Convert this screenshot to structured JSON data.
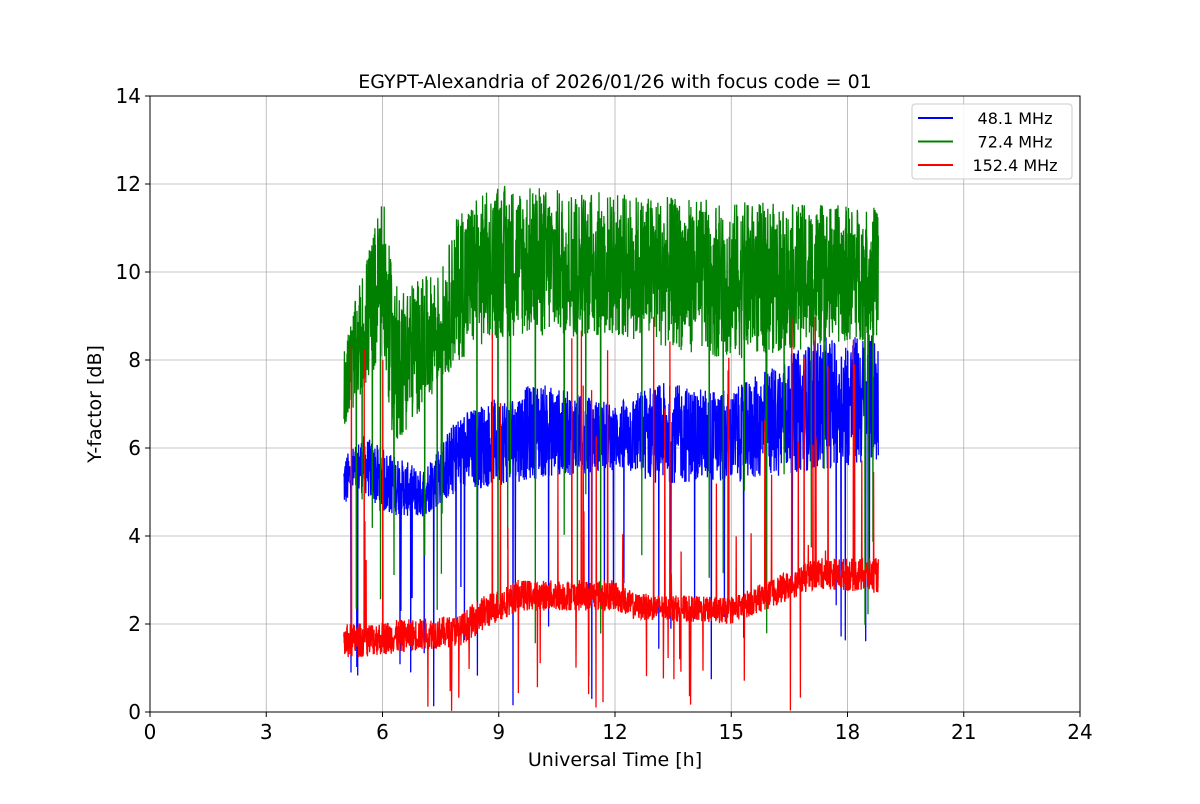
{
  "chart_data": {
    "type": "line",
    "title": "EGYPT-Alexandria of 2026/01/26 with focus code = 01",
    "xlabel": "Universal Time [h]",
    "ylabel": "Y-factor [dB]",
    "xlim": [
      0,
      24
    ],
    "ylim": [
      0,
      14
    ],
    "xticks": [
      0,
      3,
      6,
      9,
      12,
      15,
      18,
      21,
      24
    ],
    "yticks": [
      0,
      2,
      4,
      6,
      8,
      10,
      12,
      14
    ],
    "grid": true,
    "legend_position": "top-right",
    "series": [
      {
        "name": "48.1 MHz",
        "color": "#0000ff",
        "envelope": [
          [
            5.0,
            4.6,
            5.8
          ],
          [
            5.5,
            5.0,
            6.3
          ],
          [
            6.0,
            4.5,
            6.0
          ],
          [
            7.0,
            4.4,
            5.5
          ],
          [
            8.0,
            5.0,
            6.8
          ],
          [
            10.0,
            5.3,
            7.5
          ],
          [
            12.0,
            5.5,
            7.0
          ],
          [
            13.0,
            5.2,
            7.5
          ],
          [
            15.0,
            5.2,
            7.3
          ],
          [
            17.2,
            5.5,
            8.5
          ],
          [
            18.8,
            5.6,
            8.6
          ]
        ],
        "drop_rate": 0.012,
        "drop_min": 0.1,
        "spike_rate": 0.0,
        "spike_max": 8.5
      },
      {
        "name": "72.4 MHz",
        "color": "#008000",
        "envelope": [
          [
            5.0,
            6.5,
            8.3
          ],
          [
            6.0,
            8.0,
            11.8
          ],
          [
            6.3,
            6.0,
            9.7
          ],
          [
            7.5,
            7.5,
            10.0
          ],
          [
            8.0,
            8.0,
            11.5
          ],
          [
            9.0,
            8.5,
            12.0
          ],
          [
            12.0,
            8.5,
            11.8
          ],
          [
            15.0,
            8.0,
            11.6
          ],
          [
            18.8,
            8.5,
            11.5
          ]
        ],
        "drop_rate": 0.012,
        "drop_min": 1.5,
        "spike_rate": 0.0,
        "spike_max": 12
      },
      {
        "name": "152.4 MHz",
        "color": "#ff0000",
        "envelope": [
          [
            5.0,
            1.2,
            2.0
          ],
          [
            8.0,
            1.5,
            2.2
          ],
          [
            8.5,
            1.8,
            2.6
          ],
          [
            9.5,
            2.3,
            3.0
          ],
          [
            12.0,
            2.3,
            3.0
          ],
          [
            12.5,
            2.1,
            2.7
          ],
          [
            15.0,
            2.0,
            2.6
          ],
          [
            17.2,
            2.8,
            3.5
          ],
          [
            18.8,
            2.7,
            3.5
          ]
        ],
        "drop_rate": 0.012,
        "drop_min": 0.0,
        "spike_rate": 0.02,
        "spike_max": 9.0
      }
    ],
    "time_range": [
      5.0,
      18.8
    ]
  }
}
